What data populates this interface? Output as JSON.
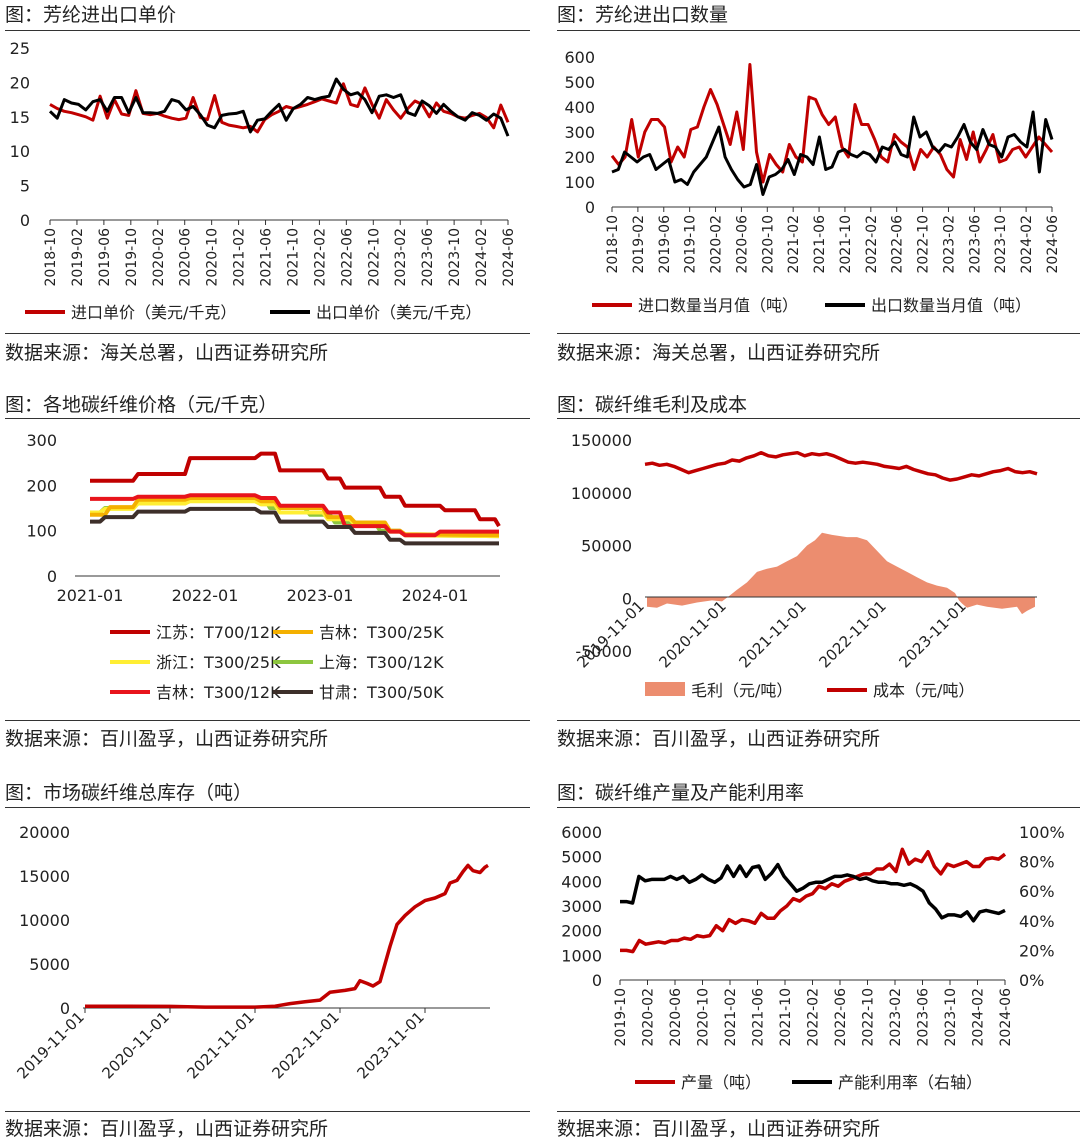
{
  "colors": {
    "red": "#c00000",
    "black": "#000000",
    "salmon": "#ec8d6f",
    "c_jiangsu": "#c00000",
    "c_jilin25": "#f4b000",
    "c_zhejiang": "#ffee33",
    "c_shanghai": "#8dc63f",
    "c_jilin12": "#e8141c",
    "c_gansu": "#3d2f2a"
  },
  "panels": {
    "p1": {
      "title": "图：芳纶进出口单价",
      "source": "数据来源：海关总署，山西证券研究所"
    },
    "p2": {
      "title": "图：芳纶进出口数量",
      "source": "数据来源：海关总署，山西证券研究所"
    },
    "p3": {
      "title": "图：各地碳纤维价格（元/千克）",
      "source": "数据来源：百川盈孚，山西证券研究所"
    },
    "p4": {
      "title": "图：碳纤维毛利及成本",
      "source": "数据来源：百川盈孚，山西证券研究所"
    },
    "p5": {
      "title": "图：市场碳纤维总库存（吨）",
      "source": "数据来源：百川盈孚，山西证券研究所"
    },
    "p6": {
      "title": "图：碳纤维产量及产能利用率",
      "source": "数据来源：百川盈孚，山西证券研究所"
    }
  },
  "chart_data": [
    {
      "id": "c1",
      "type": "line",
      "x_ticks": [
        "2018-10",
        "2019-02",
        "2019-06",
        "2019-10",
        "2020-02",
        "2020-06",
        "2020-10",
        "2021-02",
        "2021-06",
        "2021-10",
        "2022-02",
        "2022-06",
        "2022-10",
        "2023-02",
        "2023-06",
        "2023-10",
        "2024-02",
        "2024-06"
      ],
      "ylim": [
        0,
        25
      ],
      "y_ticks": [
        "0",
        "5",
        "10",
        "15",
        "20",
        "25"
      ],
      "series": [
        {
          "name": "进口单价（美元/千克）",
          "color": "#c00000",
          "values": [
            16.8,
            16.2,
            15.8,
            15.6,
            15.3,
            15.0,
            14.5,
            18.0,
            14.8,
            17.5,
            15.4,
            15.2,
            18.8,
            15.5,
            15.3,
            15.5,
            15.1,
            14.8,
            14.6,
            14.8,
            17.8,
            14.9,
            14.6,
            18.1,
            14.2,
            13.8,
            13.6,
            13.4,
            13.6,
            12.8,
            14.6,
            15.3,
            15.8,
            16.5,
            16.2,
            16.5,
            16.8,
            17.2,
            17.6,
            17.3,
            17.0,
            19.8,
            16.8,
            16.5,
            19.2,
            16.8,
            14.8,
            17.5,
            16.0,
            14.8,
            16.2,
            17.3,
            16.8,
            15.0,
            17.0,
            15.8,
            15.5,
            15.0,
            14.8,
            15.2,
            15.5,
            14.9,
            13.4,
            16.7,
            14.2
          ]
        },
        {
          "name": "出口单价（美元/千克）",
          "color": "#000000",
          "values": [
            15.8,
            14.8,
            17.5,
            17.0,
            16.8,
            16.0,
            17.2,
            17.5,
            15.8,
            17.8,
            17.8,
            15.6,
            17.8,
            15.6,
            15.6,
            15.5,
            15.8,
            17.5,
            17.2,
            16.0,
            16.5,
            15.3,
            13.8,
            13.4,
            15.2,
            15.4,
            15.5,
            15.8,
            12.8,
            14.5,
            14.7,
            15.8,
            16.8,
            14.5,
            16.2,
            16.8,
            17.8,
            17.5,
            17.8,
            18.0,
            20.5,
            19.0,
            18.2,
            18.5,
            17.5,
            15.6,
            18.0,
            18.2,
            17.8,
            18.2,
            15.6,
            15.2,
            17.3,
            16.6,
            15.5,
            16.8,
            15.8,
            15.0,
            14.5,
            15.6,
            15.2,
            14.5,
            15.4,
            14.8,
            12.2
          ]
        }
      ]
    },
    {
      "id": "c2",
      "type": "line",
      "x_ticks": [
        "2018-10",
        "2019-02",
        "2019-06",
        "2019-10",
        "2020-02",
        "2020-06",
        "2020-10",
        "2021-02",
        "2021-06",
        "2021-10",
        "2022-02",
        "2022-06",
        "2022-10",
        "2023-02",
        "2023-06",
        "2023-10",
        "2024-02",
        "2024-06"
      ],
      "ylim": [
        0,
        600
      ],
      "y_ticks": [
        "0",
        "100",
        "200",
        "300",
        "400",
        "500",
        "600"
      ],
      "series": [
        {
          "name": "进口数量当月值（吨）",
          "color": "#c00000",
          "values": [
            205,
            170,
            200,
            350,
            200,
            300,
            350,
            350,
            320,
            180,
            240,
            200,
            310,
            320,
            400,
            470,
            410,
            330,
            250,
            380,
            230,
            570,
            220,
            100,
            210,
            170,
            140,
            250,
            200,
            180,
            440,
            430,
            370,
            330,
            360,
            240,
            200,
            410,
            330,
            330,
            270,
            200,
            180,
            290,
            260,
            240,
            150,
            230,
            200,
            240,
            210,
            150,
            120,
            270,
            190,
            300,
            180,
            230,
            290,
            180,
            190,
            230,
            240,
            200,
            240,
            280,
            250,
            220
          ]
        },
        {
          "name": "出口数量当月值（吨）",
          "color": "#000000",
          "values": [
            140,
            150,
            220,
            200,
            180,
            200,
            210,
            150,
            170,
            190,
            100,
            110,
            90,
            140,
            170,
            200,
            260,
            320,
            200,
            150,
            110,
            80,
            90,
            170,
            50,
            120,
            130,
            150,
            190,
            130,
            210,
            200,
            170,
            280,
            150,
            160,
            220,
            230,
            210,
            200,
            220,
            210,
            180,
            240,
            230,
            260,
            210,
            200,
            360,
            280,
            300,
            240,
            220,
            250,
            240,
            280,
            330,
            260,
            230,
            310,
            250,
            240,
            200,
            280,
            290,
            260,
            240,
            380,
            140,
            350,
            270
          ]
        }
      ]
    },
    {
      "id": "c3",
      "type": "line",
      "x_ticks": [
        "2021-01",
        "2022-01",
        "2023-01",
        "2024-01"
      ],
      "ylim": [
        0,
        300
      ],
      "y_ticks": [
        "0",
        "100",
        "200",
        "300"
      ],
      "series": [
        {
          "name": "江苏：T700/12K",
          "color": "#c00000"
        },
        {
          "name": "吉林：T300/25K",
          "color": "#f4b000"
        },
        {
          "name": "浙江：T300/25K",
          "color": "#ffee33"
        },
        {
          "name": "上海：T300/12K",
          "color": "#8dc63f"
        },
        {
          "name": "吉林：T300/12K",
          "color": "#e8141c"
        },
        {
          "name": "甘肃：T300/50K",
          "color": "#3d2f2a"
        }
      ]
    },
    {
      "id": "c4",
      "type": "area+line",
      "x_ticks": [
        "2019-11-01",
        "2020-11-01",
        "2021-11-01",
        "2022-11-01",
        "2023-11-01"
      ],
      "ylim": [
        -50000,
        150000
      ],
      "y_ticks": [
        "-50000",
        "0",
        "50000",
        "100000",
        "150000"
      ],
      "series": [
        {
          "name": "毛利（元/吨）",
          "color": "#ec8d6f"
        },
        {
          "name": "成本（元/吨）",
          "color": "#c00000"
        }
      ]
    },
    {
      "id": "c5",
      "type": "line",
      "x_ticks": [
        "2019-11-01",
        "2020-11-01",
        "2021-11-01",
        "2022-11-01",
        "2023-11-01"
      ],
      "ylim": [
        0,
        20000
      ],
      "y_ticks": [
        "0",
        "5000",
        "10000",
        "15000",
        "20000"
      ],
      "series": [
        {
          "name": "",
          "color": "#c00000"
        }
      ]
    },
    {
      "id": "c6",
      "type": "line",
      "x_ticks": [
        "2019-10",
        "2020-02",
        "2020-06",
        "2020-10",
        "2021-02",
        "2021-06",
        "2021-10",
        "2022-02",
        "2022-06",
        "2022-10",
        "2023-02",
        "2023-06",
        "2023-10",
        "2024-02",
        "2024-06"
      ],
      "ylim": [
        0,
        6000
      ],
      "y_ticks": [
        "0",
        "1000",
        "2000",
        "3000",
        "4000",
        "5000",
        "6000"
      ],
      "y2lim": [
        0,
        100
      ],
      "y2_ticks": [
        "0%",
        "20%",
        "40%",
        "60%",
        "80%",
        "100%"
      ],
      "series": [
        {
          "name": "产量（吨）",
          "color": "#c00000"
        },
        {
          "name": "产能利用率（右轴）",
          "color": "#000000"
        }
      ]
    }
  ]
}
